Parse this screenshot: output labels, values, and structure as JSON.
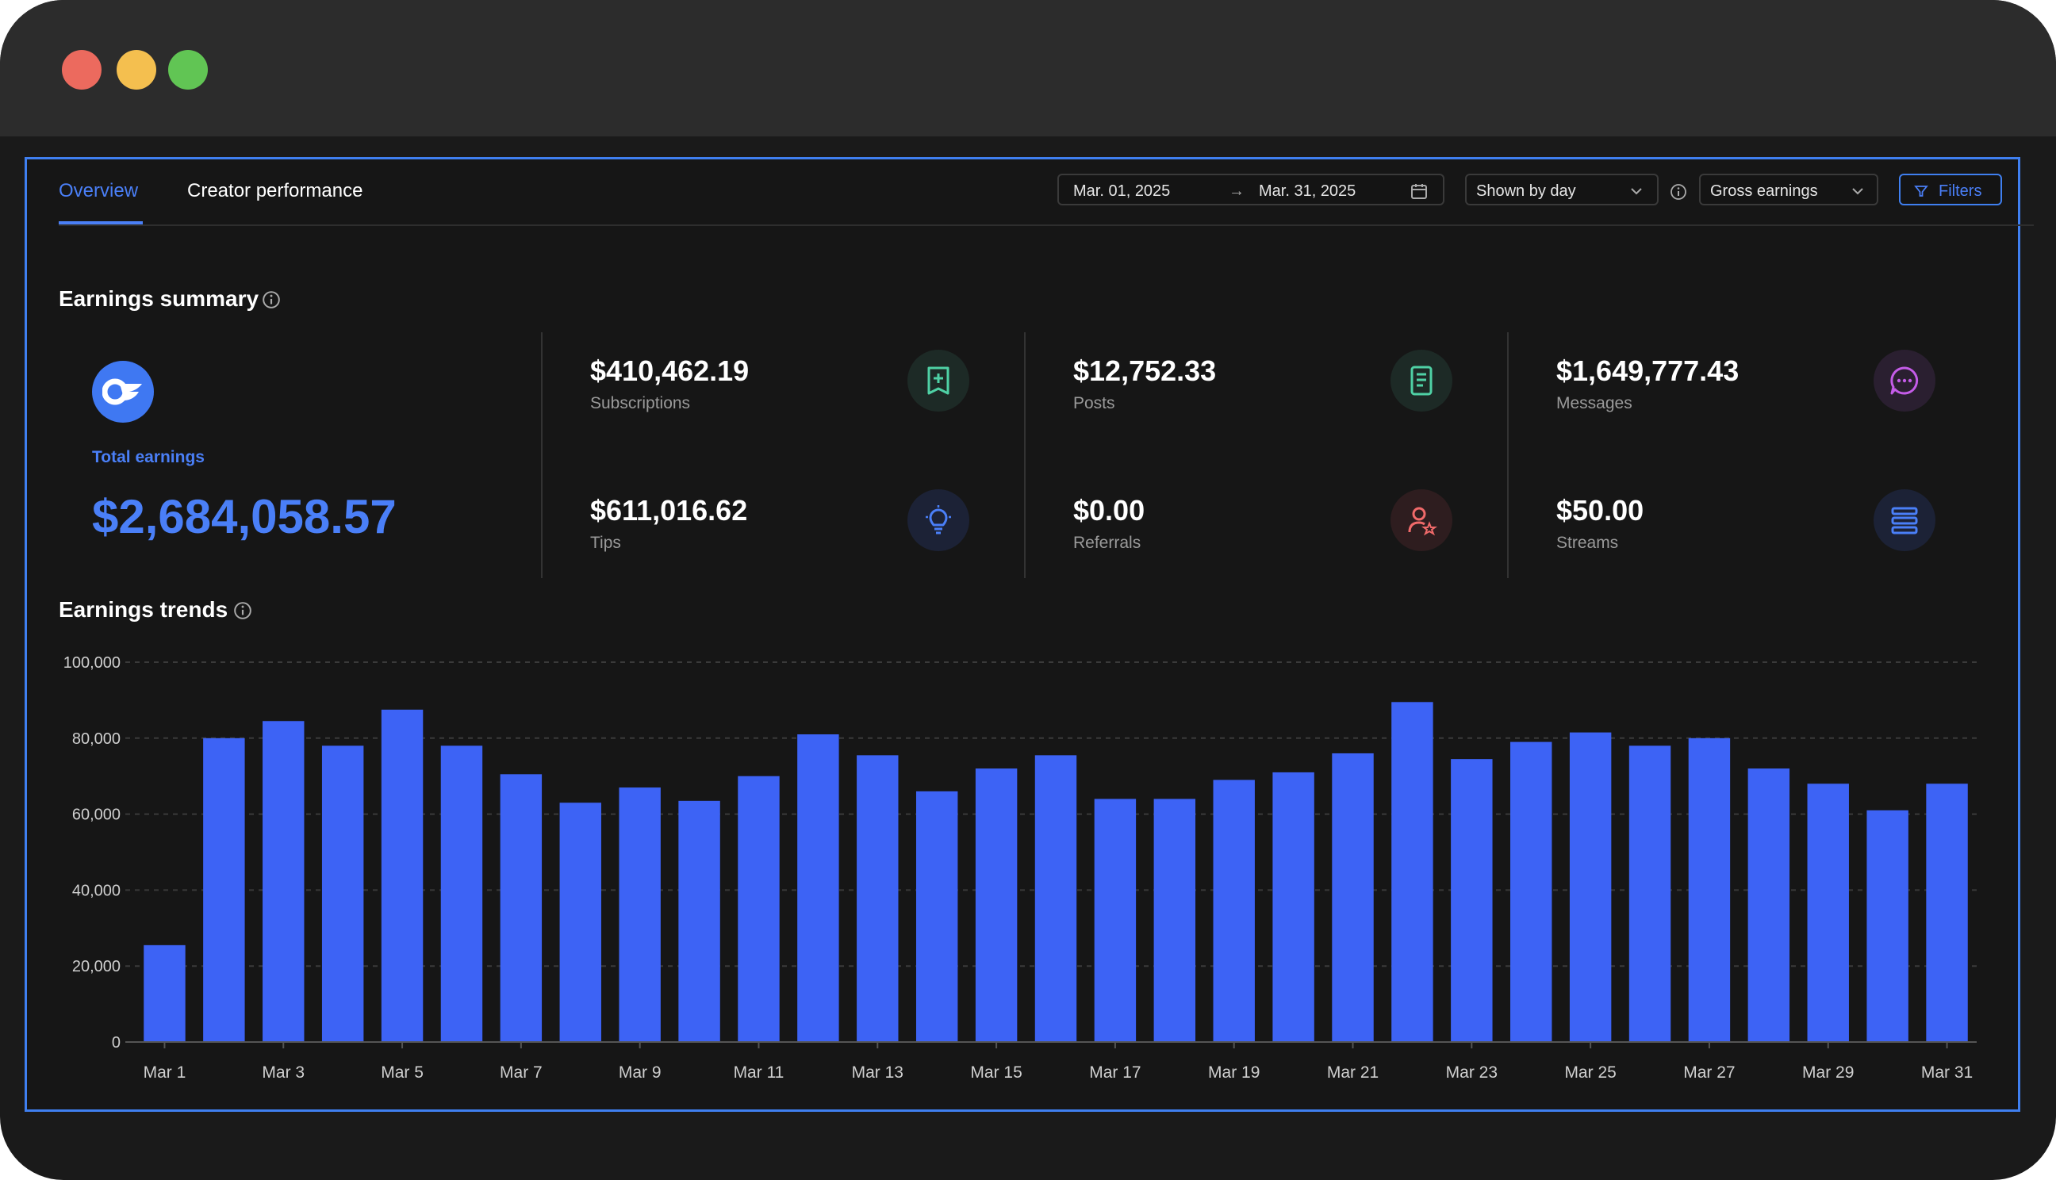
{
  "tabs": {
    "overview": "Overview",
    "creator_performance": "Creator performance"
  },
  "filters_bar": {
    "date_from": "Mar. 01, 2025",
    "date_arrow": "→",
    "date_to": "Mar. 31, 2025",
    "shown_by": "Shown by day",
    "metric_select": "Gross earnings",
    "filters_label": "Filters"
  },
  "summary": {
    "title": "Earnings summary",
    "total_label": "Total earnings",
    "total_value": "$2,684,058.57",
    "metrics": [
      {
        "value": "$410,462.19",
        "label": "Subscriptions",
        "icon": "subscription-icon",
        "icon_bg": "#1d2a26",
        "icon_color": "#4fd1a5"
      },
      {
        "value": "$12,752.33",
        "label": "Posts",
        "icon": "document-icon",
        "icon_bg": "#1d2a26",
        "icon_color": "#4fd1a5"
      },
      {
        "value": "$1,649,777.43",
        "label": "Messages",
        "icon": "chat-icon",
        "icon_bg": "#2a1f30",
        "icon_color": "#c45ce8"
      },
      {
        "value": "$611,016.62",
        "label": "Tips",
        "icon": "lightbulb-icon",
        "icon_bg": "#1c2236",
        "icon_color": "#4a7ff7"
      },
      {
        "value": "$0.00",
        "label": "Referrals",
        "icon": "user-star-icon",
        "icon_bg": "#2e1d1f",
        "icon_color": "#f06a6a"
      },
      {
        "value": "$50.00",
        "label": "Streams",
        "icon": "stream-icon",
        "icon_bg": "#1c2236",
        "icon_color": "#4a7ff7"
      }
    ]
  },
  "trends": {
    "title": "Earnings trends"
  },
  "colors": {
    "accent": "#4a7ff7",
    "bar": "#3d63f5"
  },
  "chart_data": {
    "type": "bar",
    "title": "Earnings trends",
    "xlabel": "",
    "ylabel": "",
    "ylim": [
      0,
      100000
    ],
    "yticks": [
      0,
      20000,
      40000,
      60000,
      80000,
      100000
    ],
    "ytick_labels": [
      "0",
      "20,000",
      "40,000",
      "60,000",
      "80,000",
      "100,000"
    ],
    "grid": true,
    "categories": [
      "Mar 1",
      "Mar 2",
      "Mar 3",
      "Mar 4",
      "Mar 5",
      "Mar 6",
      "Mar 7",
      "Mar 8",
      "Mar 9",
      "Mar 10",
      "Mar 11",
      "Mar 12",
      "Mar 13",
      "Mar 14",
      "Mar 15",
      "Mar 16",
      "Mar 17",
      "Mar 18",
      "Mar 19",
      "Mar 20",
      "Mar 21",
      "Mar 22",
      "Mar 23",
      "Mar 24",
      "Mar 25",
      "Mar 26",
      "Mar 27",
      "Mar 28",
      "Mar 29",
      "Mar 30",
      "Mar 31"
    ],
    "tick_labels": [
      "Mar 1",
      "Mar 3",
      "Mar 5",
      "Mar 7",
      "Mar 9",
      "Mar 11",
      "Mar 13",
      "Mar 15",
      "Mar 17",
      "Mar 19",
      "Mar 21",
      "Mar 23",
      "Mar 25",
      "Mar 27",
      "Mar 29",
      "Mar 31"
    ],
    "values": [
      25500,
      80000,
      84500,
      78000,
      87500,
      78000,
      70500,
      63000,
      67000,
      63500,
      70000,
      81000,
      75500,
      66000,
      72000,
      75500,
      64000,
      64000,
      69000,
      71000,
      76000,
      89500,
      74500,
      79000,
      81500,
      78000,
      80000,
      72000,
      68000,
      61000,
      68000
    ]
  }
}
